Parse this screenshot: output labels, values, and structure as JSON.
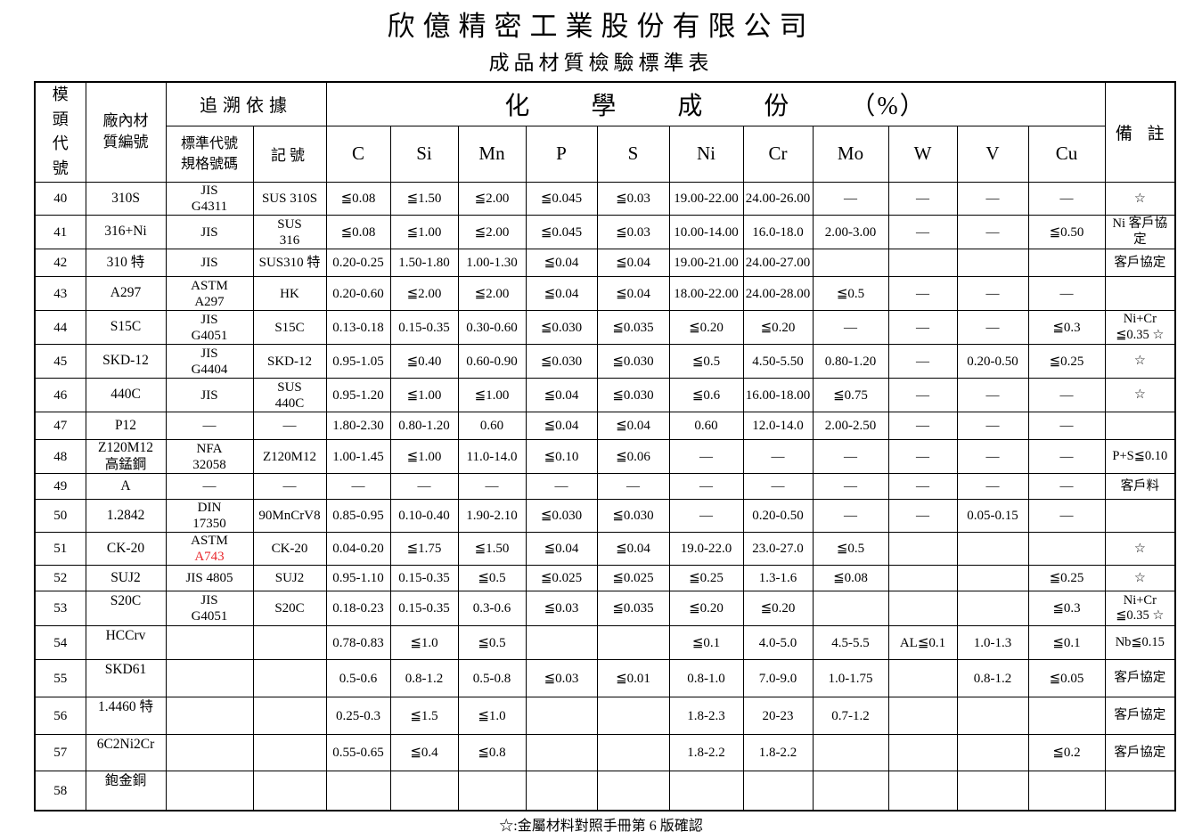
{
  "title": "欣億精密工業股份有限公司",
  "subtitle": "成品材質檢驗標準表",
  "footnote": "☆:金屬材料對照手冊第 6 版確認",
  "colors": {
    "accent_red": "#e8262b",
    "ink": "#000000"
  },
  "table": {
    "headers": {
      "die_code": "模頭代號",
      "material_no_line1": "廠內材",
      "material_no_line2": "質編號",
      "trace_basis": "追溯依據",
      "standard_line1": "標準代號",
      "standard_line2": "規格號碼",
      "mark": "記號",
      "chemical": "化 學 成 份 （%）",
      "elements": [
        "C",
        "Si",
        "Mn",
        "P",
        "S",
        "Ni",
        "Cr",
        "Mo",
        "W",
        "V",
        "Cu"
      ],
      "remark": "備 註"
    },
    "rows": [
      {
        "code": "40",
        "material": "310S",
        "standard": "JIS",
        "standard2": "G4311",
        "mark": "SUS 310S",
        "c": "≦0.08",
        "si": "≦1.50",
        "mn": "≦2.00",
        "p": "≦0.045",
        "s": "≦0.03",
        "ni": "19.00-22.00",
        "cr": "24.00-26.00",
        "mo": "—",
        "w": "—",
        "v": "—",
        "cu": "—",
        "remark": "☆"
      },
      {
        "code": "41",
        "material": "316+Ni",
        "standard": "JIS",
        "mark": "SUS",
        "mark2": "316",
        "c": "≦0.08",
        "si": "≦1.00",
        "mn": "≦2.00",
        "p": "≦0.045",
        "s": "≦0.03",
        "ni": "10.00-14.00",
        "cr": "16.0-18.0",
        "mo": "2.00-3.00",
        "w": "—",
        "v": "—",
        "cu": "≦0.50",
        "remark": "Ni 客戶協定"
      },
      {
        "code": "42",
        "material": "310 特",
        "standard": "JIS",
        "mark": "SUS310 特",
        "c": "0.20-0.25",
        "si": "1.50-1.80",
        "mn": "1.00-1.30",
        "p": "≦0.04",
        "s": "≦0.04",
        "ni": "19.00-21.00",
        "cr": "24.00-27.00",
        "mo": "",
        "w": "",
        "v": "",
        "cu": "",
        "remark": "客戶協定"
      },
      {
        "code": "43",
        "material": "A297",
        "standard": "ASTM",
        "standard2": "A297",
        "mark": "HK",
        "c": "0.20-0.60",
        "si": "≦2.00",
        "mn": "≦2.00",
        "p": "≦0.04",
        "s": "≦0.04",
        "ni": "18.00-22.00",
        "cr": "24.00-28.00",
        "mo": "≦0.5",
        "w": "—",
        "v": "—",
        "cu": "—",
        "remark": ""
      },
      {
        "code": "44",
        "material": "S15C",
        "standard": "JIS",
        "standard2": "G4051",
        "mark": "S15C",
        "c": "0.13-0.18",
        "si": "0.15-0.35",
        "mn": "0.30-0.60",
        "p": "≦0.030",
        "s": "≦0.035",
        "ni": "≦0.20",
        "cr": "≦0.20",
        "mo": "—",
        "w": "—",
        "v": "—",
        "cu": "≦0.3",
        "remark": "Ni+Cr",
        "remark2": "≦0.35 ☆"
      },
      {
        "code": "45",
        "material": "SKD-12",
        "standard": "JIS",
        "standard2": "G4404",
        "mark": "SKD-12",
        "c": "0.95-1.05",
        "si": "≦0.40",
        "mn": "0.60-0.90",
        "p": "≦0.030",
        "s": "≦0.030",
        "ni": "≦0.5",
        "cr": "4.50-5.50",
        "mo": "0.80-1.20",
        "w": "—",
        "v": "0.20-0.50",
        "cu": "≦0.25",
        "remark": "☆"
      },
      {
        "code": "46",
        "material": "440C",
        "standard": "JIS",
        "mark": "SUS",
        "mark2": "440C",
        "c": "0.95-1.20",
        "si": "≦1.00",
        "mn": "≦1.00",
        "p": "≦0.04",
        "s": "≦0.030",
        "ni": "≦0.6",
        "cr": "16.00-18.00",
        "mo": "≦0.75",
        "w": "—",
        "v": "—",
        "cu": "—",
        "remark": "☆"
      },
      {
        "code": "47",
        "material": "P12",
        "standard": "—",
        "mark": "—",
        "c": "1.80-2.30",
        "si": "0.80-1.20",
        "mn": "0.60",
        "p": "≦0.04",
        "s": "≦0.04",
        "ni": "0.60",
        "cr": "12.0-14.0",
        "mo": "2.00-2.50",
        "w": "—",
        "v": "—",
        "cu": "—",
        "remark": ""
      },
      {
        "code": "48",
        "material": "Z120M12",
        "material2": "高錳鋼",
        "standard": "NFA",
        "standard2": "32058",
        "mark": "Z120M12",
        "c": "1.00-1.45",
        "si": "≦1.00",
        "mn": "11.0-14.0",
        "p": "≦0.10",
        "s": "≦0.06",
        "ni": "—",
        "cr": "—",
        "mo": "—",
        "w": "—",
        "v": "—",
        "cu": "—",
        "remark": "P+S≦0.10"
      },
      {
        "code": "49",
        "material": "A",
        "standard": "—",
        "mark": "—",
        "c": "—",
        "si": "—",
        "mn": "—",
        "p": "—",
        "s": "—",
        "ni": "—",
        "cr": "—",
        "mo": "—",
        "w": "—",
        "v": "—",
        "cu": "—",
        "remark": "客戶料"
      },
      {
        "code": "50",
        "material": "1.2842",
        "standard": "DIN",
        "standard2": "17350",
        "mark": "90MnCrV8",
        "c": "0.85-0.95",
        "si": "0.10-0.40",
        "mn": "1.90-2.10",
        "p": "≦0.030",
        "s": "≦0.030",
        "ni": "—",
        "cr": "0.20-0.50",
        "mo": "—",
        "w": "—",
        "v": "0.05-0.15",
        "cu": "—",
        "remark": ""
      },
      {
        "code": "51",
        "material": "CK-20",
        "standard": "ASTM",
        "standard2": "A743",
        "standard2_red": true,
        "mark": "CK-20",
        "c": "0.04-0.20",
        "si": "≦1.75",
        "mn": "≦1.50",
        "p": "≦0.04",
        "s": "≦0.04",
        "ni": "19.0-22.0",
        "cr": "23.0-27.0",
        "mo": "≦0.5",
        "w": "",
        "v": "",
        "cu": "",
        "remark": "☆"
      },
      {
        "code": "52",
        "material": "SUJ2",
        "standard": "JIS 4805",
        "mark": "SUJ2",
        "c": "0.95-1.10",
        "si": "0.15-0.35",
        "mn": "≦0.5",
        "p": "≦0.025",
        "s": "≦0.025",
        "ni": "≦0.25",
        "cr": "1.3-1.6",
        "mo": "≦0.08",
        "w": "",
        "v": "",
        "cu": "≦0.25",
        "remark": "☆"
      },
      {
        "code": "53",
        "material": "S20C",
        "standard": "JIS",
        "standard2": "G4051",
        "mark": "S20C",
        "c": "0.18-0.23",
        "si": "0.15-0.35",
        "mn": "0.3-0.6",
        "p": "≦0.03",
        "s": "≦0.035",
        "ni": "≦0.20",
        "cr": "≦0.20",
        "mo": "",
        "w": "",
        "v": "",
        "cu": "≦0.3",
        "remark": "Ni+Cr",
        "remark2": "≦0.35 ☆"
      },
      {
        "code": "54",
        "material": "HCCrv",
        "standard": "",
        "mark": "",
        "c": "0.78-0.83",
        "si": "≦1.0",
        "mn": "≦0.5",
        "p": "",
        "s": "",
        "ni": "≦0.1",
        "cr": "4.0-5.0",
        "mo": "4.5-5.5",
        "w": "AL≦0.1",
        "v": "1.0-1.3",
        "cu": "≦0.1",
        "remark": "Nb≦0.15"
      },
      {
        "code": "55",
        "material": "SKD61",
        "standard": "",
        "mark": "",
        "c": "0.5-0.6",
        "si": "0.8-1.2",
        "mn": "0.5-0.8",
        "p": "≦0.03",
        "s": "≦0.01",
        "ni": "0.8-1.0",
        "cr": "7.0-9.0",
        "mo": "1.0-1.75",
        "w": "",
        "v": "0.8-1.2",
        "cu": "≦0.05",
        "remark": "客戶協定"
      },
      {
        "code": "56",
        "material": "1.4460 特",
        "standard": "",
        "mark": "",
        "c": "0.25-0.3",
        "si": "≦1.5",
        "mn": "≦1.0",
        "p": "",
        "s": "",
        "ni": "1.8-2.3",
        "cr": "20-23",
        "mo": "0.7-1.2",
        "w": "",
        "v": "",
        "cu": "",
        "remark": "客戶協定"
      },
      {
        "code": "57",
        "material": "6C2Ni2Cr",
        "standard": "",
        "mark": "",
        "c": "0.55-0.65",
        "si": "≦0.4",
        "mn": "≦0.8",
        "p": "",
        "s": "",
        "ni": "1.8-2.2",
        "cr": "1.8-2.2",
        "mo": "",
        "w": "",
        "v": "",
        "cu": "≦0.2",
        "remark": "客戶協定"
      },
      {
        "code": "58",
        "material": "鉋金銅",
        "standard": "",
        "mark": "",
        "c": "",
        "si": "",
        "mn": "",
        "p": "",
        "s": "",
        "ni": "",
        "cr": "",
        "mo": "",
        "w": "",
        "v": "",
        "cu": "",
        "remark": ""
      }
    ]
  }
}
